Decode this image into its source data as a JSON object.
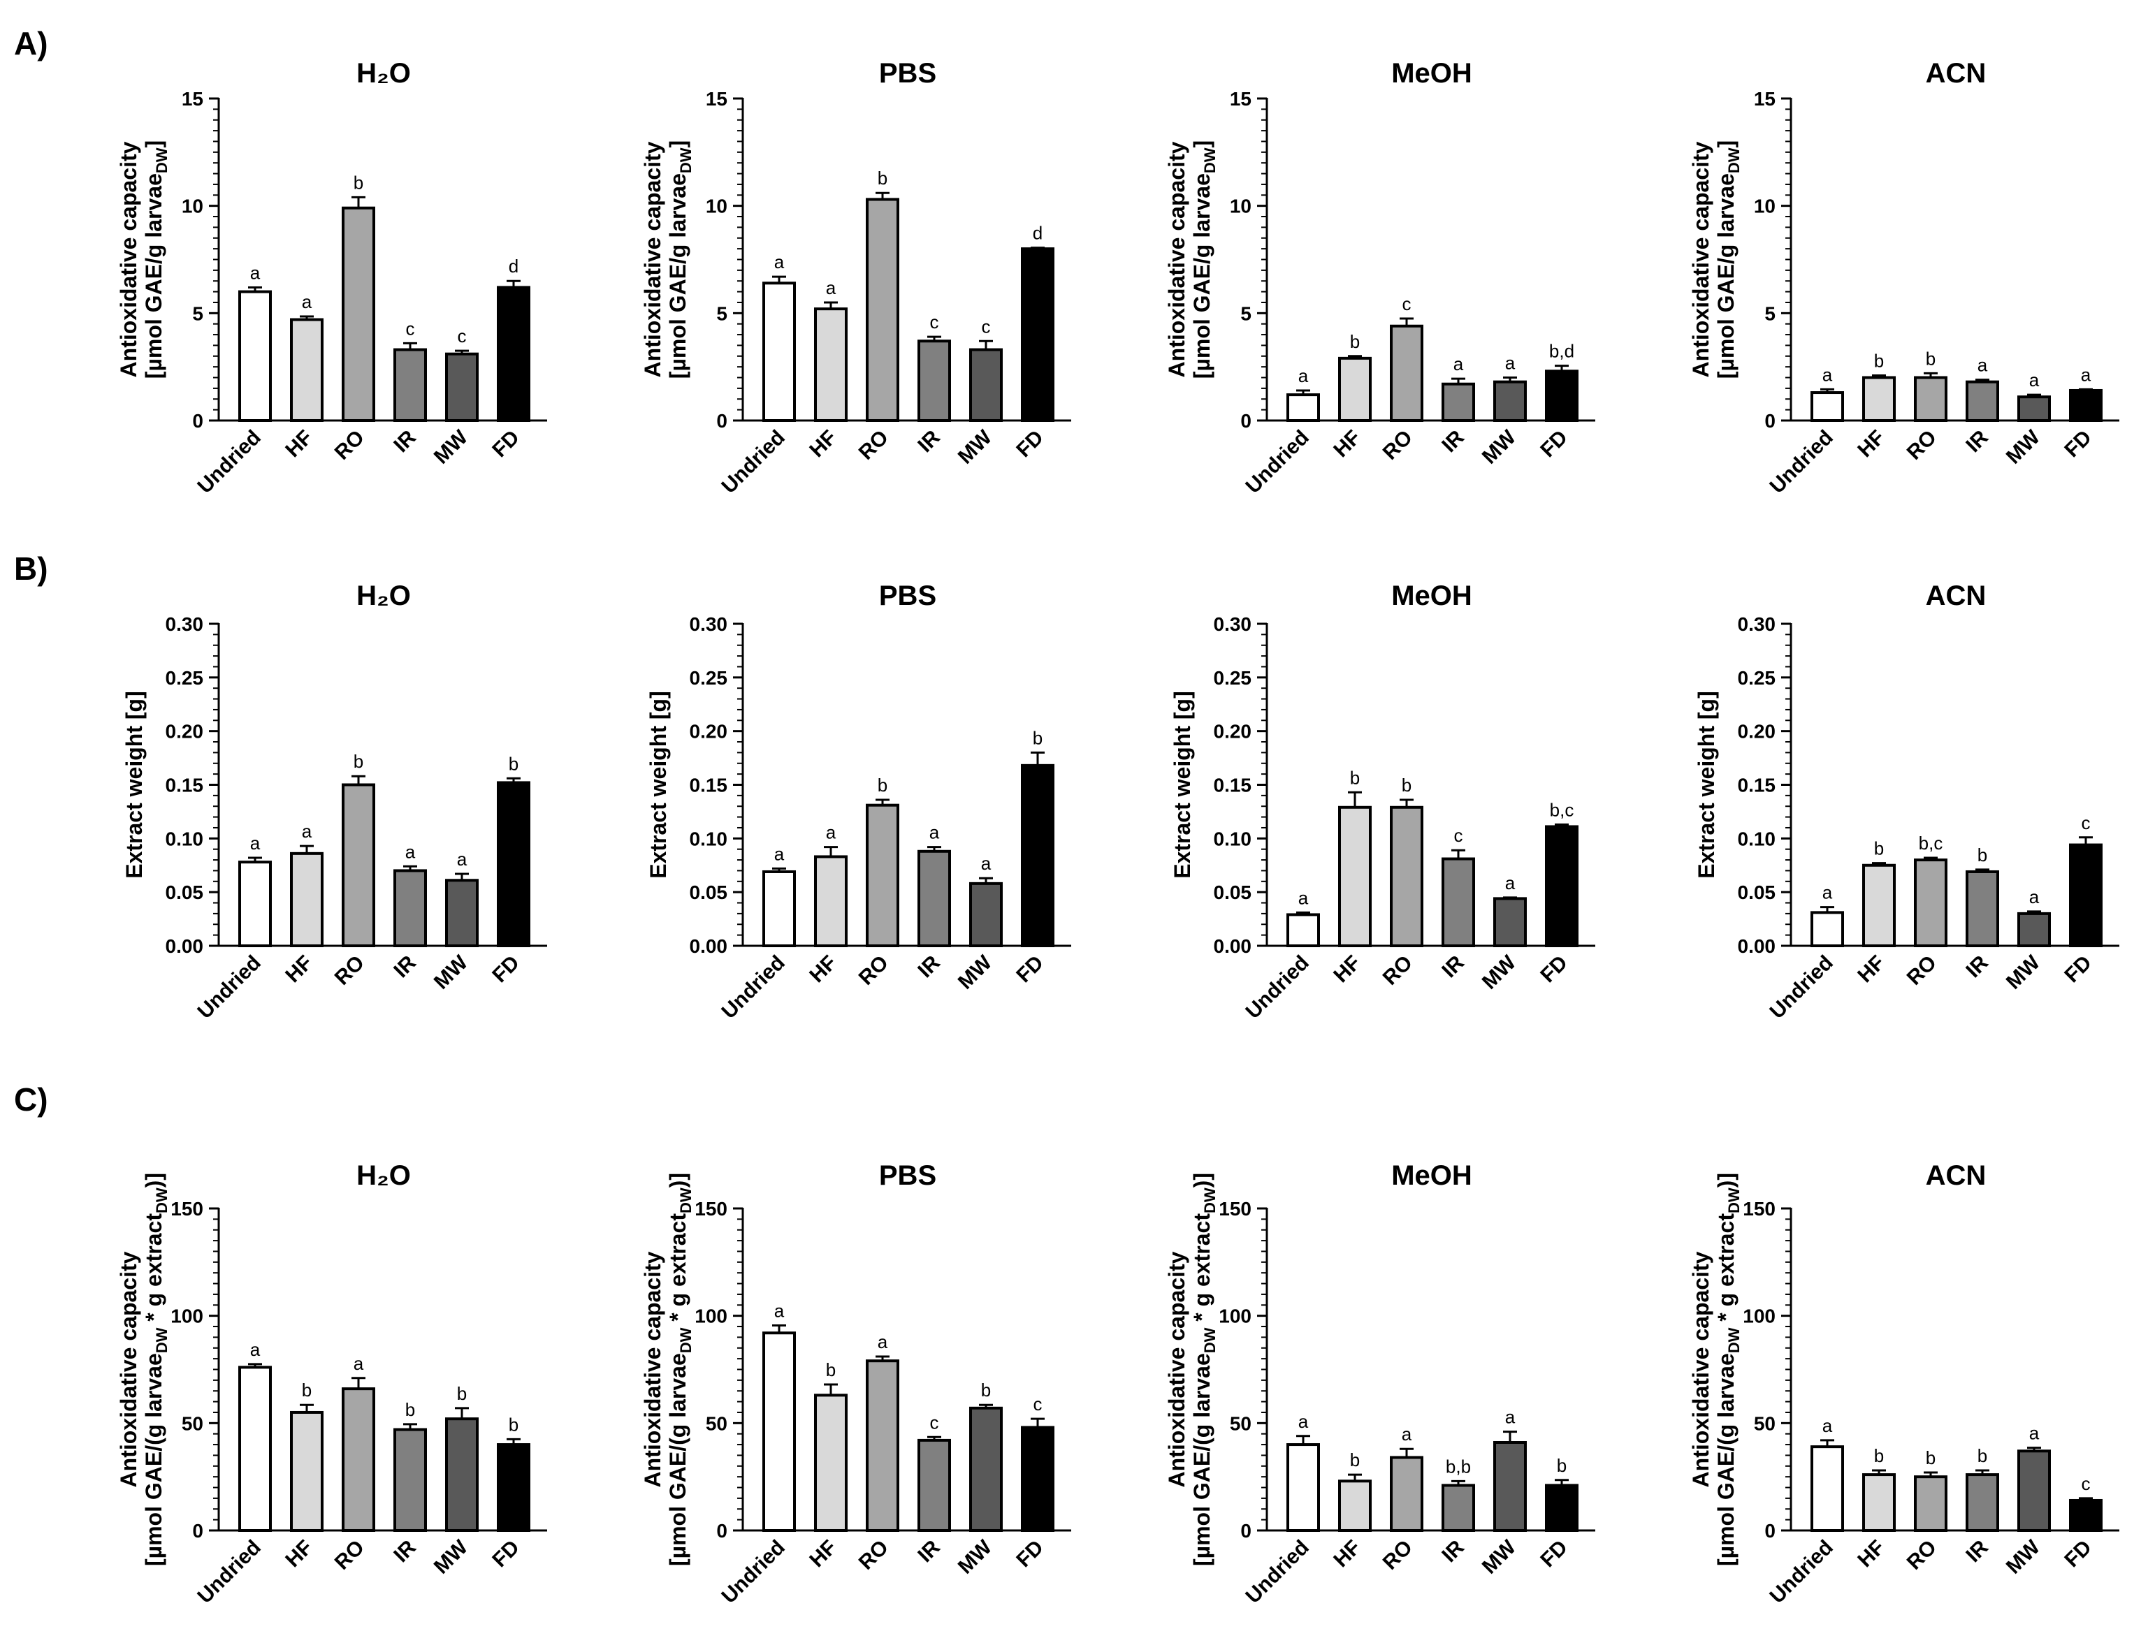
{
  "sections": [
    {
      "id": "A",
      "label": "A)"
    },
    {
      "id": "B",
      "label": "B)"
    },
    {
      "id": "C",
      "label": "C)"
    }
  ],
  "chart_data": [
    {
      "type": "bar",
      "section": "A",
      "title": "H₂O",
      "ylabel": "Antioxidative capacity [µmol GAE/g larvaeᴅᴡ]",
      "ylabel_lines": [
        "Antioxidative capacity",
        "[µmol GAE/g larvae",
        "DW",
        "]"
      ],
      "ylim": [
        0,
        15
      ],
      "yticks": [
        0,
        5,
        10,
        15
      ],
      "yticks_text": [
        "0",
        "5",
        "10",
        "15"
      ],
      "categories": [
        "Undried",
        "HF",
        "RO",
        "IR",
        "MW",
        "FD"
      ],
      "values": [
        6.0,
        4.7,
        9.9,
        3.3,
        3.1,
        6.2
      ],
      "errors": [
        0.2,
        0.15,
        0.5,
        0.3,
        0.15,
        0.3
      ],
      "letters": [
        "a",
        "a",
        "b",
        "c",
        "c",
        "d"
      ]
    },
    {
      "type": "bar",
      "section": "A",
      "title": "PBS",
      "ylabel": "Antioxidative capacity [µmol GAE/g larvaeᴅᴡ]",
      "ylabel_lines": [
        "Antioxidative capacity",
        "[µmol GAE/g larvae",
        "DW",
        "]"
      ],
      "ylim": [
        0,
        15
      ],
      "yticks": [
        0,
        5,
        10,
        15
      ],
      "yticks_text": [
        "0",
        "5",
        "10",
        "15"
      ],
      "categories": [
        "Undried",
        "HF",
        "RO",
        "IR",
        "MW",
        "FD"
      ],
      "values": [
        6.4,
        5.2,
        10.3,
        3.7,
        3.3,
        8.0
      ],
      "errors": [
        0.3,
        0.3,
        0.3,
        0.2,
        0.4,
        0.05
      ],
      "letters": [
        "a",
        "a",
        "b",
        "c",
        "c",
        "d"
      ]
    },
    {
      "type": "bar",
      "section": "A",
      "title": "MeOH",
      "ylabel": "Antioxidative capacity [µmol GAE/g larvaeᴅᴡ]",
      "ylabel_lines": [
        "Antioxidative capacity",
        "[µmol GAE/g larvae",
        "DW",
        "]"
      ],
      "ylim": [
        0,
        15
      ],
      "yticks": [
        0,
        5,
        10,
        15
      ],
      "yticks_text": [
        "0",
        "5",
        "10",
        "15"
      ],
      "categories": [
        "Undried",
        "HF",
        "RO",
        "IR",
        "MW",
        "FD"
      ],
      "values": [
        1.2,
        2.9,
        4.4,
        1.7,
        1.8,
        2.3
      ],
      "errors": [
        0.2,
        0.1,
        0.35,
        0.25,
        0.2,
        0.25
      ],
      "letters": [
        "a",
        "b",
        "c",
        "a",
        "a",
        "b,d"
      ]
    },
    {
      "type": "bar",
      "section": "A",
      "title": "ACN",
      "ylabel": "Antioxidative capacity [µmol GAE/g larvaeᴅᴡ]",
      "ylabel_lines": [
        "Antioxidative capacity",
        "[µmol GAE/g larvae",
        "DW",
        "]"
      ],
      "ylim": [
        0,
        15
      ],
      "yticks": [
        0,
        5,
        10,
        15
      ],
      "yticks_text": [
        "0",
        "5",
        "10",
        "15"
      ],
      "categories": [
        "Undried",
        "HF",
        "RO",
        "IR",
        "MW",
        "FD"
      ],
      "values": [
        1.3,
        2.0,
        2.0,
        1.8,
        1.1,
        1.4
      ],
      "errors": [
        0.15,
        0.1,
        0.2,
        0.1,
        0.1,
        0.05
      ],
      "letters": [
        "a",
        "b",
        "b",
        "a",
        "a",
        "a"
      ]
    },
    {
      "type": "bar",
      "section": "B",
      "title": "H₂O",
      "ylabel": "Extract weight [g]",
      "ylabel_lines": [
        "Extract weight [g]"
      ],
      "ylim": [
        0,
        0.3
      ],
      "yticks": [
        0,
        0.05,
        0.1,
        0.15,
        0.2,
        0.25,
        0.3
      ],
      "yticks_text": [
        "0.00",
        "0.05",
        "0.10",
        "0.15",
        "0.20",
        "0.25",
        "0.30"
      ],
      "categories": [
        "Undried",
        "HF",
        "RO",
        "IR",
        "MW",
        "FD"
      ],
      "values": [
        0.078,
        0.086,
        0.15,
        0.07,
        0.061,
        0.152
      ],
      "errors": [
        0.004,
        0.007,
        0.008,
        0.004,
        0.006,
        0.004
      ],
      "letters": [
        "a",
        "a",
        "b",
        "a",
        "a",
        "b"
      ]
    },
    {
      "type": "bar",
      "section": "B",
      "title": "PBS",
      "ylabel": "Extract weight [g]",
      "ylabel_lines": [
        "Extract weight [g]"
      ],
      "ylim": [
        0,
        0.3
      ],
      "yticks": [
        0,
        0.05,
        0.1,
        0.15,
        0.2,
        0.25,
        0.3
      ],
      "yticks_text": [
        "0.00",
        "0.05",
        "0.10",
        "0.15",
        "0.20",
        "0.25",
        "0.30"
      ],
      "categories": [
        "Undried",
        "HF",
        "RO",
        "IR",
        "MW",
        "FD"
      ],
      "values": [
        0.069,
        0.083,
        0.131,
        0.088,
        0.058,
        0.168
      ],
      "errors": [
        0.003,
        0.009,
        0.005,
        0.004,
        0.005,
        0.012
      ],
      "letters": [
        "a",
        "a",
        "b",
        "a",
        "a",
        "b"
      ]
    },
    {
      "type": "bar",
      "section": "B",
      "title": "MeOH",
      "ylabel": "Extract weight [g]",
      "ylabel_lines": [
        "Extract weight [g]"
      ],
      "ylim": [
        0,
        0.3
      ],
      "yticks": [
        0,
        0.05,
        0.1,
        0.15,
        0.2,
        0.25,
        0.3
      ],
      "yticks_text": [
        "0.00",
        "0.05",
        "0.10",
        "0.15",
        "0.20",
        "0.25",
        "0.30"
      ],
      "categories": [
        "Undried",
        "HF",
        "RO",
        "IR",
        "MW",
        "FD"
      ],
      "values": [
        0.029,
        0.129,
        0.129,
        0.081,
        0.044,
        0.111
      ],
      "errors": [
        0.002,
        0.014,
        0.007,
        0.008,
        0.001,
        0.002
      ],
      "letters": [
        "a",
        "b",
        "b",
        "c",
        "a",
        "b,c"
      ]
    },
    {
      "type": "bar",
      "section": "B",
      "title": "ACN",
      "ylabel": "Extract weight [g]",
      "ylabel_lines": [
        "Extract weight [g]"
      ],
      "ylim": [
        0,
        0.3
      ],
      "yticks": [
        0,
        0.05,
        0.1,
        0.15,
        0.2,
        0.25,
        0.3
      ],
      "yticks_text": [
        "0.00",
        "0.05",
        "0.10",
        "0.15",
        "0.20",
        "0.25",
        "0.30"
      ],
      "categories": [
        "Undried",
        "HF",
        "RO",
        "IR",
        "MW",
        "FD"
      ],
      "values": [
        0.031,
        0.075,
        0.08,
        0.069,
        0.03,
        0.094
      ],
      "errors": [
        0.005,
        0.002,
        0.002,
        0.002,
        0.002,
        0.007
      ],
      "letters": [
        "a",
        "b",
        "b,c",
        "b",
        "a",
        "c"
      ]
    },
    {
      "type": "bar",
      "section": "C",
      "title": "H₂O",
      "ylabel": "Antioxidative capacity [µmol GAE/(g larvaeᴅᴡ * g extractᴅᴡ)]",
      "ylabel_lines": [
        "Antioxidative capacity",
        "[µmol GAE/(g larvae",
        "DW",
        " * g extract",
        "DW",
        ")]"
      ],
      "ylim": [
        0,
        150
      ],
      "yticks": [
        0,
        50,
        100,
        150
      ],
      "yticks_text": [
        "0",
        "50",
        "100",
        "150"
      ],
      "categories": [
        "Undried",
        "HF",
        "RO",
        "IR",
        "MW",
        "FD"
      ],
      "values": [
        76,
        55,
        66,
        47,
        52,
        40
      ],
      "errors": [
        1.5,
        3.5,
        5,
        2.5,
        5,
        2.5
      ],
      "letters": [
        "a",
        "b",
        "a",
        "b",
        "b",
        "b"
      ]
    },
    {
      "type": "bar",
      "section": "C",
      "title": "PBS",
      "ylabel": "Antioxidative capacity [µmol GAE/(g larvaeᴅᴡ * g extractᴅᴡ)]",
      "ylabel_lines": [
        "Antioxidative capacity",
        "[µmol GAE/(g larvae",
        "DW",
        " * g extract",
        "DW",
        ")]"
      ],
      "ylim": [
        0,
        150
      ],
      "yticks": [
        0,
        50,
        100,
        150
      ],
      "yticks_text": [
        "0",
        "50",
        "100",
        "150"
      ],
      "categories": [
        "Undried",
        "HF",
        "RO",
        "IR",
        "MW",
        "FD"
      ],
      "values": [
        92,
        63,
        79,
        42,
        57,
        48
      ],
      "errors": [
        3.5,
        5,
        2,
        1.5,
        1.5,
        4
      ],
      "letters": [
        "a",
        "b",
        "a",
        "c",
        "b",
        "c"
      ]
    },
    {
      "type": "bar",
      "section": "C",
      "title": "MeOH",
      "ylabel": "Antioxidative capacity [µmol GAE/(g larvaeᴅᴡ * g extractᴅᴡ)]",
      "ylabel_lines": [
        "Antioxidative capacity",
        "[µmol GAE/(g larvae",
        "DW",
        " * g extract",
        "DW",
        ")]"
      ],
      "ylim": [
        0,
        150
      ],
      "yticks": [
        0,
        50,
        100,
        150
      ],
      "yticks_text": [
        "0",
        "50",
        "100",
        "150"
      ],
      "categories": [
        "Undried",
        "HF",
        "RO",
        "IR",
        "MW",
        "FD"
      ],
      "values": [
        40,
        23,
        34,
        21,
        41,
        21
      ],
      "errors": [
        4,
        3,
        4,
        2,
        5,
        2.5
      ],
      "letters": [
        "a",
        "b",
        "a",
        "b,b",
        "a",
        "b"
      ]
    },
    {
      "type": "bar",
      "section": "C",
      "title": "ACN",
      "ylabel": "Antioxidative capacity [µmol GAE/(g larvaeᴅᴡ * g extractᴅᴡ)]",
      "ylabel_lines": [
        "Antioxidative capacity",
        "[µmol GAE/(g larvae",
        "DW",
        " * g extract",
        "DW",
        ")]"
      ],
      "ylim": [
        0,
        150
      ],
      "yticks": [
        0,
        50,
        100,
        150
      ],
      "yticks_text": [
        "0",
        "50",
        "100",
        "150"
      ],
      "categories": [
        "Undried",
        "HF",
        "RO",
        "IR",
        "MW",
        "FD"
      ],
      "values": [
        39,
        26,
        25,
        26,
        37,
        14
      ],
      "errors": [
        3,
        2,
        2,
        2,
        1.5,
        1
      ],
      "letters": [
        "a",
        "b",
        "b",
        "b",
        "a",
        "c"
      ]
    }
  ],
  "colors": {
    "Undried": "#ffffff",
    "HF": "#d9d9d9",
    "RO": "#a6a6a6",
    "IR": "#808080",
    "MW": "#595959",
    "FD": "#000000",
    "axis": "#000000"
  }
}
